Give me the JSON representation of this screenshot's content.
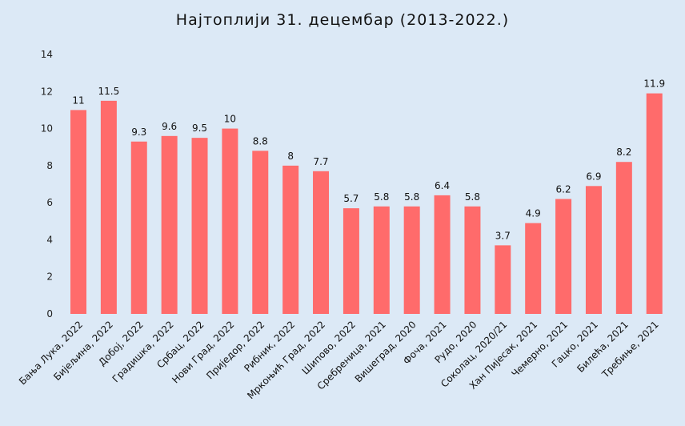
{
  "chart_data": {
    "type": "bar",
    "title": "Најтоплији 31. децембар (2013-2022.)",
    "categories": [
      "Бања Лука, 2022",
      "Бијељина, 2022",
      "Добој, 2022",
      "Градишка, 2022",
      "Србац, 2022",
      "Нови Град, 2022",
      "Приједор, 2022",
      "Рибник, 2022",
      "Мркоњић Град, 2022",
      "Шипово, 2022",
      "Сребреница, 2021",
      "Вишеград, 2020",
      "Фоча, 2021",
      "Рудо, 2020",
      "Соколац, 2020/21",
      "Хан Пијесак, 2021",
      "Чемерно, 2021",
      "Гацко, 2021",
      "Билећа, 2021",
      "Требиње, 2021"
    ],
    "values": [
      11,
      11.5,
      9.3,
      9.6,
      9.5,
      10,
      8.8,
      8,
      7.7,
      5.7,
      5.8,
      5.8,
      6.4,
      5.8,
      3.7,
      4.9,
      6.2,
      6.9,
      8.2,
      11.9
    ],
    "data_labels": [
      "11",
      "11.5",
      "9.3",
      "9.6",
      "9.5",
      "10",
      "8.8",
      "8",
      "7.7",
      "5.7",
      "5.8",
      "5.8",
      "6.4",
      "5.8",
      "3.7",
      "4.9",
      "6.2",
      "6.9",
      "8.2",
      "11.9"
    ],
    "ylim": [
      0,
      14
    ],
    "yticks": [
      0,
      2,
      4,
      6,
      8,
      10,
      12,
      14
    ],
    "grid": false,
    "legend": "none",
    "bar_color": "#ff6b6b",
    "background": "#dce9f6"
  }
}
